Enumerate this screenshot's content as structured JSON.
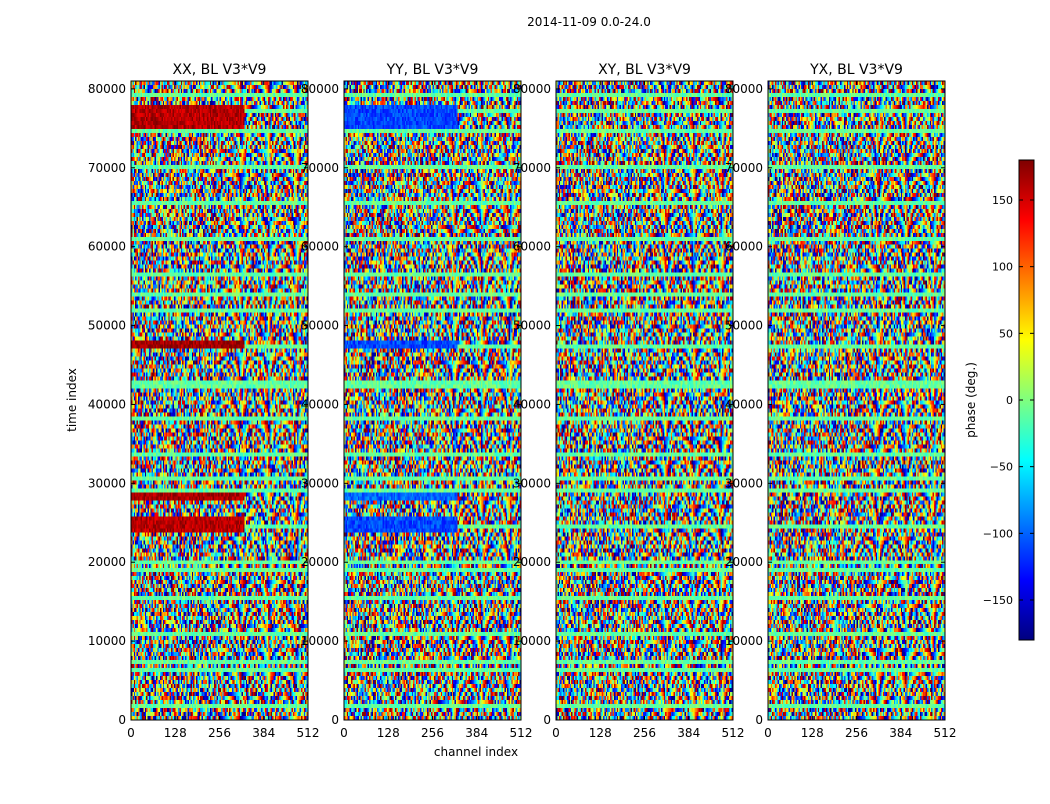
{
  "figure": {
    "suptitle": "2014-11-09 0.0-24.0",
    "xlabel": "channel index",
    "ylabel": "time index"
  },
  "colorbar": {
    "label": "phase (deg.)",
    "min": -180,
    "max": 180,
    "ticks": [
      150,
      100,
      50,
      0,
      -50,
      -100,
      -150
    ],
    "tick_labels": [
      "150",
      "100",
      "50",
      "0",
      "−50",
      "−100",
      "−150"
    ],
    "colormap": [
      "#00007f",
      "#0000ff",
      "#007fff",
      "#00ffff",
      "#7fff7f",
      "#ffff00",
      "#ff7f00",
      "#ff0000",
      "#7f0000"
    ]
  },
  "chart_data": [
    {
      "type": "heatmap",
      "title": "XX, BL V3*V9",
      "xlim": [
        0,
        512
      ],
      "ylim": [
        0,
        81000
      ],
      "xticks": [
        0,
        128,
        256,
        384,
        512
      ],
      "yticks": [
        0,
        10000,
        20000,
        30000,
        40000,
        50000,
        60000,
        70000,
        80000
      ],
      "value_range": [
        -180,
        180
      ],
      "feature_bands": [
        {
          "from": 75000,
          "to": 78000,
          "phase": 160
        },
        {
          "from": 47000,
          "to": 48000,
          "phase": 170
        },
        {
          "from": 28000,
          "to": 29000,
          "phase": 165
        },
        {
          "from": 24000,
          "to": 26000,
          "phase": 160
        }
      ]
    },
    {
      "type": "heatmap",
      "title": "YY, BL V3*V9",
      "xlim": [
        0,
        512
      ],
      "ylim": [
        0,
        81000
      ],
      "xticks": [
        0,
        128,
        256,
        384,
        512
      ],
      "yticks": [
        0,
        10000,
        20000,
        30000,
        40000,
        50000,
        60000,
        70000,
        80000
      ],
      "value_range": [
        -180,
        180
      ],
      "feature_bands": [
        {
          "from": 75000,
          "to": 78000,
          "phase": -110
        },
        {
          "from": 47000,
          "to": 48000,
          "phase": -110
        },
        {
          "from": 28000,
          "to": 29000,
          "phase": -100
        },
        {
          "from": 24000,
          "to": 26000,
          "phase": -110
        }
      ]
    },
    {
      "type": "heatmap",
      "title": "XY, BL V3*V9",
      "xlim": [
        0,
        512
      ],
      "ylim": [
        0,
        81000
      ],
      "xticks": [
        0,
        128,
        256,
        384,
        512
      ],
      "yticks": [
        0,
        10000,
        20000,
        30000,
        40000,
        50000,
        60000,
        70000,
        80000
      ],
      "value_range": [
        -180,
        180
      ],
      "feature_bands": []
    },
    {
      "type": "heatmap",
      "title": "YX, BL V3*V9",
      "xlim": [
        0,
        512
      ],
      "ylim": [
        0,
        81000
      ],
      "xticks": [
        0,
        128,
        256,
        384,
        512
      ],
      "yticks": [
        0,
        10000,
        20000,
        30000,
        40000,
        50000,
        60000,
        70000,
        80000
      ],
      "value_range": [
        -180,
        180
      ],
      "feature_bands": []
    }
  ]
}
